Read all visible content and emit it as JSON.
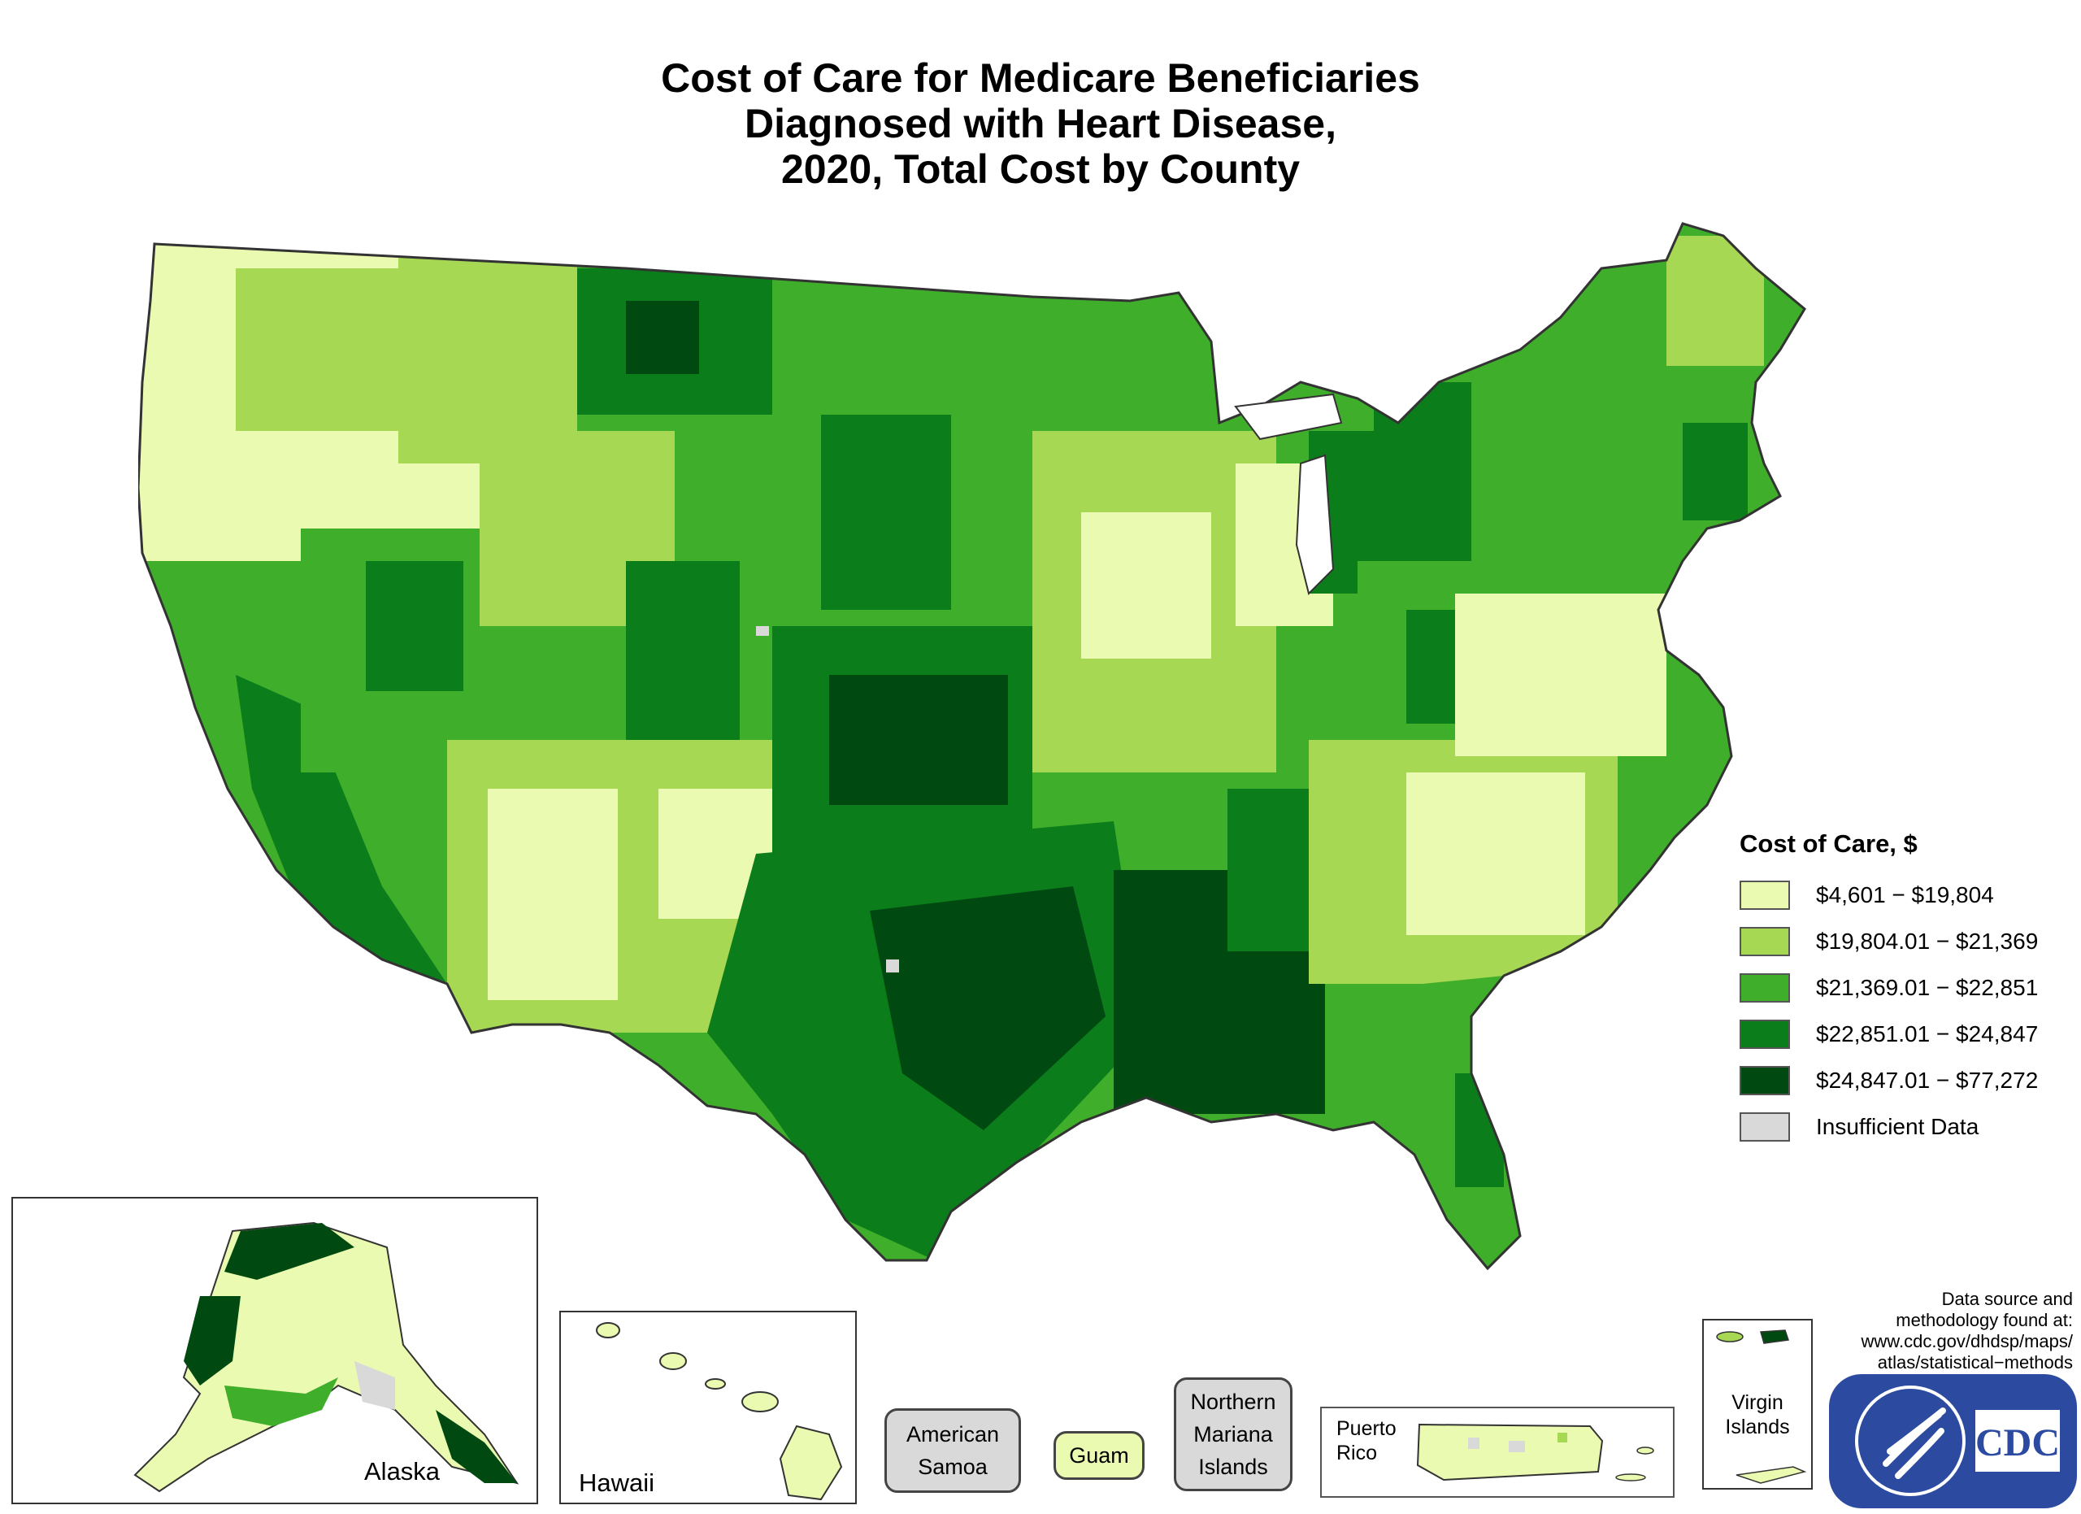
{
  "title": {
    "line1": "Cost of Care for Medicare Beneficiaries",
    "line2": "Diagnosed with Heart Disease,",
    "line3": "2020, Total Cost by County"
  },
  "legend": {
    "title": "Cost of Care, $",
    "items": [
      {
        "label": "$4,601 − $19,804",
        "color": "#eafab0"
      },
      {
        "label": "$19,804.01 − $21,369",
        "color": "#a6d854"
      },
      {
        "label": "$21,369.01 − $22,851",
        "color": "#3fae2a"
      },
      {
        "label": "$22,851.01 − $24,847",
        "color": "#0b7d1a"
      },
      {
        "label": "$24,847.01 − $77,272",
        "color": "#004a12"
      },
      {
        "label": "Insufficient Data",
        "color": "#d9d9d9"
      }
    ]
  },
  "insets": {
    "alaska": "Alaska",
    "hawaii": "Hawaii",
    "american_samoa": "American Samoa",
    "guam": "Guam",
    "northern_mariana": "Northern Mariana Islands",
    "puerto_rico": "Puerto Rico",
    "virgin_islands": "Virgin Islands"
  },
  "source": {
    "line1": "Data source and",
    "line2": "methodology found at:",
    "line3": "www.cdc.gov/dhdsp/maps/",
    "line4": "atlas/statistical−methods"
  },
  "logo": {
    "text": "CDC"
  }
}
